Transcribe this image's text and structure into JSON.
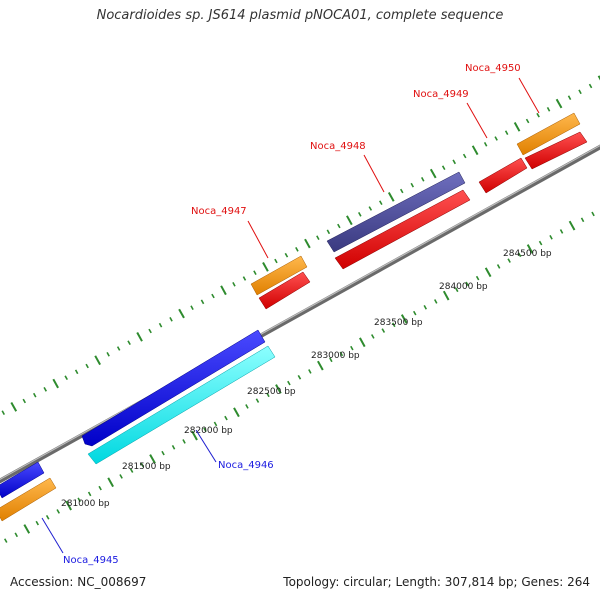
{
  "title": "Nocardioides sp. JS614 plasmid pNOCA01, complete sequence",
  "footer": {
    "accession": "Accession: NC_008697",
    "topology": "Topology: circular; Length: 307,814 bp; Genes: 264"
  },
  "ruler_labels": [
    "281000 bp",
    "281500 bp",
    "282000 bp",
    "282500 bp",
    "283000 bp",
    "283500 bp",
    "284000 bp",
    "284500 bp"
  ],
  "genes": [
    {
      "name": "Noca_4945",
      "color": "#1a1ae0"
    },
    {
      "name": "Noca_4946",
      "color": "#1a1ae0"
    },
    {
      "name": "Noca_4947",
      "color": "#e01010"
    },
    {
      "name": "Noca_4948",
      "color": "#e01010"
    },
    {
      "name": "Noca_4949",
      "color": "#e01010"
    },
    {
      "name": "Noca_4950",
      "color": "#e01010"
    }
  ],
  "colors": {
    "backbone": "#888888",
    "tick": "#2e8b2e",
    "cds_forward": "#ff0000",
    "cds_reverse": "#0000ff",
    "orf": "#ff9900",
    "cyan_feature": "#00ffff",
    "purple_feature": "#4a4a9a"
  }
}
